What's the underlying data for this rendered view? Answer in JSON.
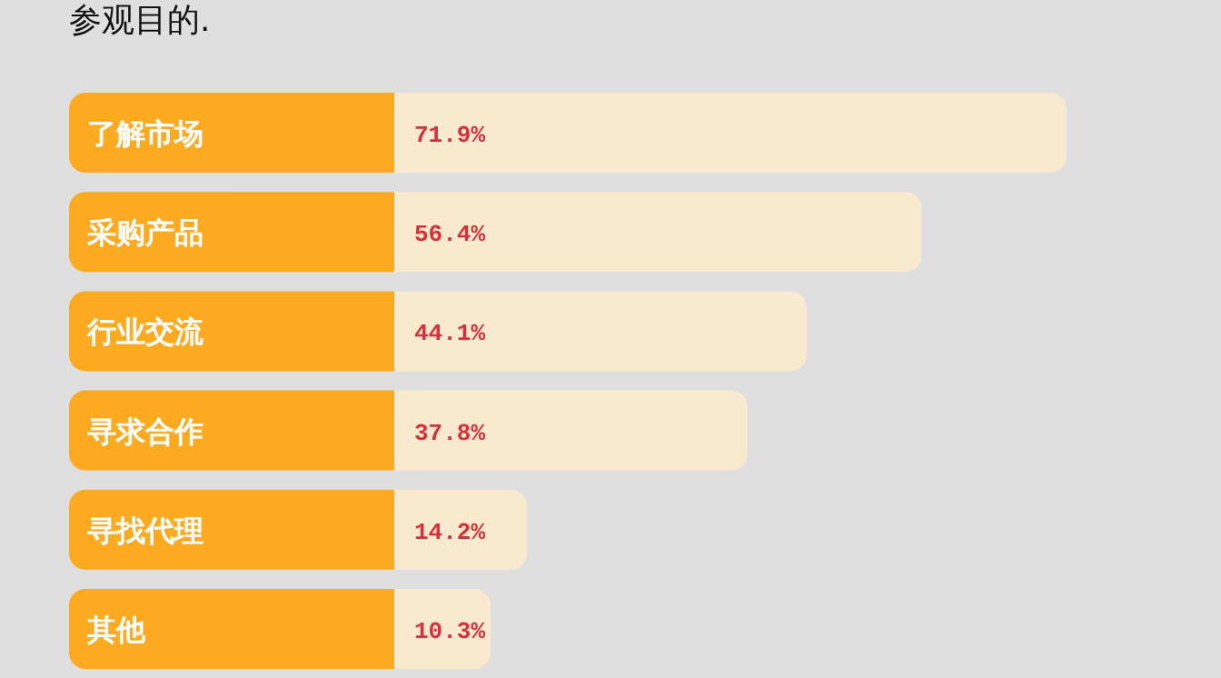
{
  "chart_data": {
    "type": "bar",
    "orientation": "horizontal",
    "title": "参观目的.",
    "categories": [
      "了解市场",
      "采购产品",
      "行业交流",
      "寻求合作",
      "寻找代理",
      "其他"
    ],
    "values": [
      71.9,
      56.4,
      44.1,
      37.8,
      14.2,
      10.3
    ],
    "value_labels": [
      "71.9%",
      "56.4%",
      "44.1%",
      "37.8%",
      "14.2%",
      "10.3%"
    ],
    "color": "#f9e9cf"
  }
}
